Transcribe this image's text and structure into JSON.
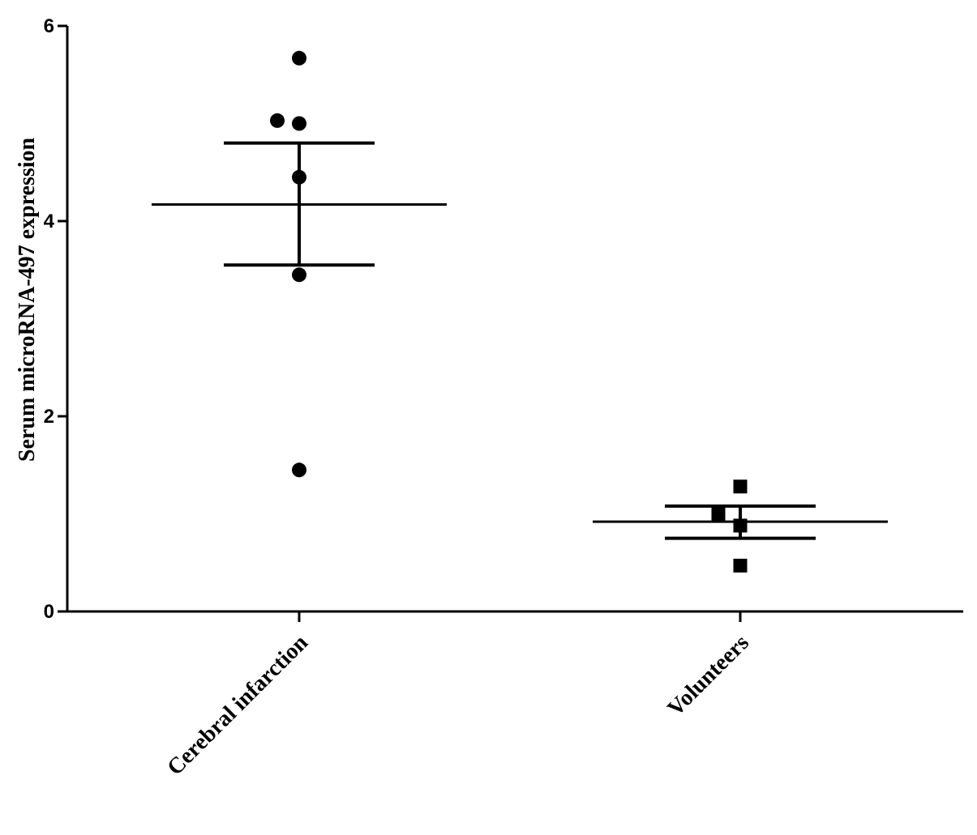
{
  "chart_data": {
    "type": "scatter",
    "title": "",
    "xlabel": "",
    "ylabel": "Serum microRNA-497 expression",
    "ylim": [
      0,
      6
    ],
    "yticks": [
      "0",
      "2",
      "4",
      "6"
    ],
    "categories": [
      "Cerebral infarction",
      "Volunteers"
    ],
    "grid": false,
    "legend": "none",
    "series": [
      {
        "category": "Cerebral infarction",
        "marker": "circle",
        "points": [
          {
            "x": 0,
            "y": 5.67
          },
          {
            "x": -0.05,
            "y": 5.03
          },
          {
            "x": 0,
            "y": 5.0
          },
          {
            "x": 0,
            "y": 4.45
          },
          {
            "x": 0,
            "y": 3.45
          },
          {
            "x": 0,
            "y": 1.45
          }
        ],
        "mean": 4.17,
        "error_upper": 4.8,
        "error_lower": 3.55
      },
      {
        "category": "Volunteers",
        "marker": "square",
        "points": [
          {
            "x": 0,
            "y": 1.28
          },
          {
            "x": -0.05,
            "y": 1.0
          },
          {
            "x": 0,
            "y": 0.88
          },
          {
            "x": 0,
            "y": 0.47
          }
        ],
        "mean": 0.92,
        "error_upper": 1.08,
        "error_lower": 0.75
      }
    ]
  }
}
